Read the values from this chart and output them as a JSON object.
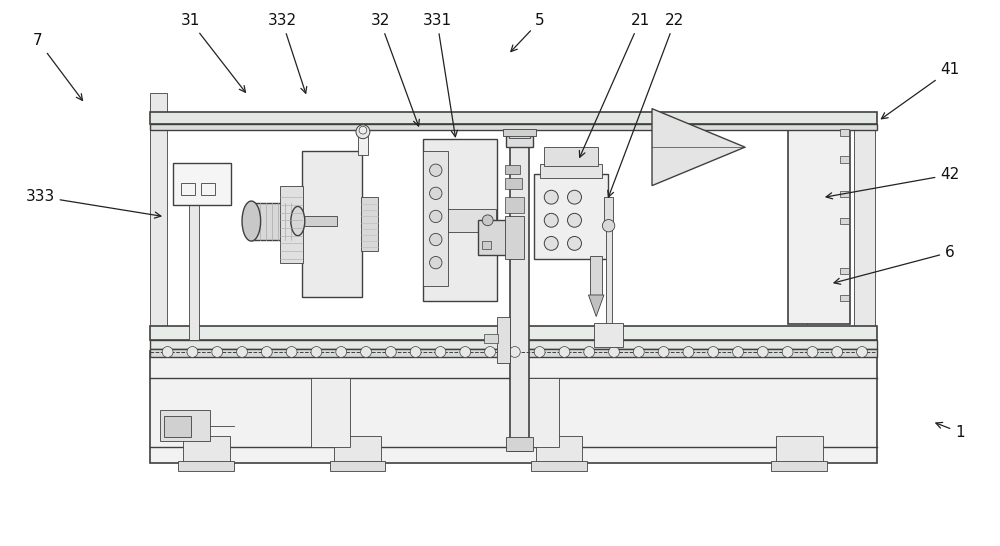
{
  "bg_color": "#ffffff",
  "lc": "#404040",
  "lc2": "#555555",
  "fc_light": "#f0f0f0",
  "fc_mid": "#e0e0e0",
  "fc_dark": "#c8c8c8",
  "fc_green": "#e8ede8",
  "annotations": [
    {
      "label": "7",
      "txy": [
        0.04,
        0.925
      ],
      "axy": [
        0.085,
        0.81
      ]
    },
    {
      "label": "31",
      "txy": [
        0.19,
        0.96
      ],
      "axy": [
        0.25,
        0.82
      ]
    },
    {
      "label": "332",
      "txy": [
        0.285,
        0.96
      ],
      "axy": [
        0.31,
        0.82
      ]
    },
    {
      "label": "32",
      "txy": [
        0.38,
        0.96
      ],
      "axy": [
        0.42,
        0.76
      ]
    },
    {
      "label": "331",
      "txy": [
        0.435,
        0.96
      ],
      "axy": [
        0.455,
        0.745
      ]
    },
    {
      "label": "5",
      "txy": [
        0.54,
        0.96
      ],
      "axy": [
        0.508,
        0.9
      ]
    },
    {
      "label": "21",
      "txy": [
        0.64,
        0.96
      ],
      "axy": [
        0.58,
        0.7
      ]
    },
    {
      "label": "22",
      "txy": [
        0.675,
        0.96
      ],
      "axy": [
        0.607,
        0.64
      ]
    },
    {
      "label": "41",
      "txy": [
        0.95,
        0.87
      ],
      "axy": [
        0.88,
        0.78
      ]
    },
    {
      "label": "42",
      "txy": [
        0.95,
        0.68
      ],
      "axy": [
        0.825,
        0.64
      ]
    },
    {
      "label": "6",
      "txy": [
        0.95,
        0.54
      ],
      "axy": [
        0.83,
        0.48
      ]
    },
    {
      "label": "1",
      "txy": [
        0.96,
        0.21
      ],
      "axy": [
        0.93,
        0.23
      ]
    },
    {
      "label": "333",
      "txy": [
        0.04,
        0.64
      ],
      "axy": [
        0.165,
        0.605
      ]
    }
  ]
}
